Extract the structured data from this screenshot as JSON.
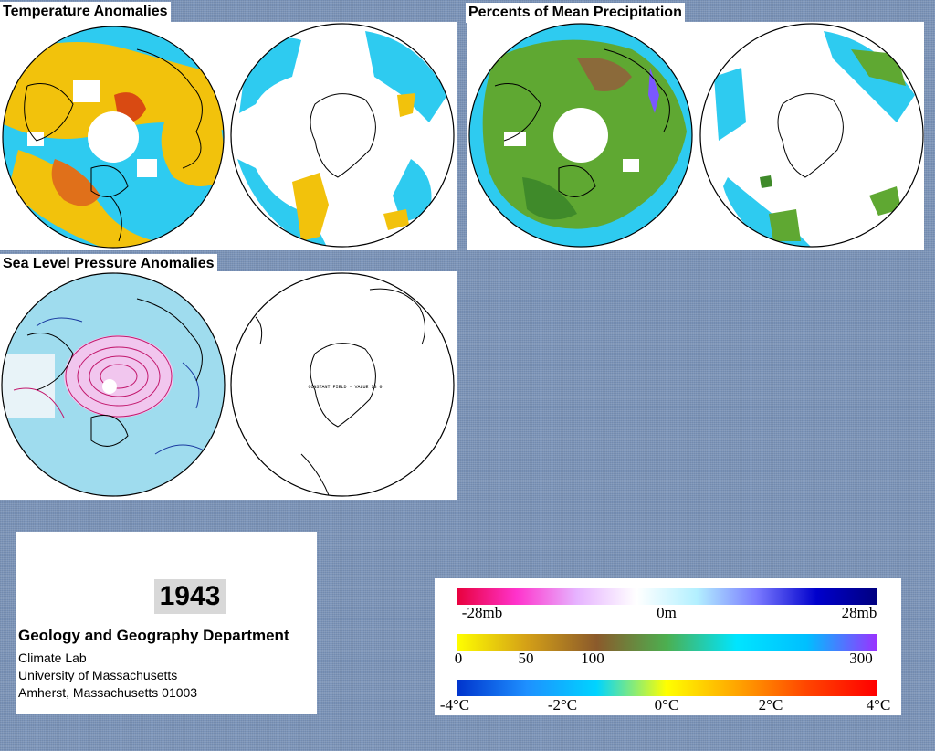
{
  "panels": {
    "temperature": {
      "title": "Temperature Anomalies"
    },
    "precipitation": {
      "title": "Percents of Mean Precipitation"
    },
    "pressure": {
      "title": "Sea Level Pressure Anomalies",
      "south_note": "CONSTANT FIELD - VALUE IS 0"
    }
  },
  "info": {
    "year": "1943",
    "department": "Geology and Geography Department",
    "line1": "Climate Lab",
    "line2": "University of Massachusetts",
    "line3": "Amherst, Massachusetts 01003"
  },
  "legends": {
    "pressure": {
      "labels": [
        "-28mb",
        "0m",
        "28mb"
      ],
      "colors": [
        "#e8003c",
        "#ff33cc",
        "#e6b3ff",
        "#ffffff",
        "#b3f0ff",
        "#7a7aff",
        "#0000cc",
        "#000080"
      ]
    },
    "precipitation": {
      "labels": [
        "0",
        "50",
        "100",
        "300"
      ],
      "colors": [
        "#ffff00",
        "#d4a017",
        "#8b5a2b",
        "#4caf50",
        "#00e5ff",
        "#00bfff",
        "#9933ff"
      ]
    },
    "temperature": {
      "labels": [
        "-4°C",
        "-2°C",
        "0°C",
        "2°C",
        "4°C"
      ],
      "colors": [
        "#0033cc",
        "#1e90ff",
        "#00d4ff",
        "#ffff00",
        "#ffa500",
        "#ff4500",
        "#ff0000"
      ]
    }
  },
  "colors": {
    "background": "#7a93b8",
    "cold": "#2ecbf0",
    "warm": "#f2c20c",
    "hot": "#e0701a",
    "wet": "#5fa832",
    "dry": "#8b6a3a",
    "lowpressure": "#9fdcee",
    "highpressure": "#f1c6ee"
  }
}
